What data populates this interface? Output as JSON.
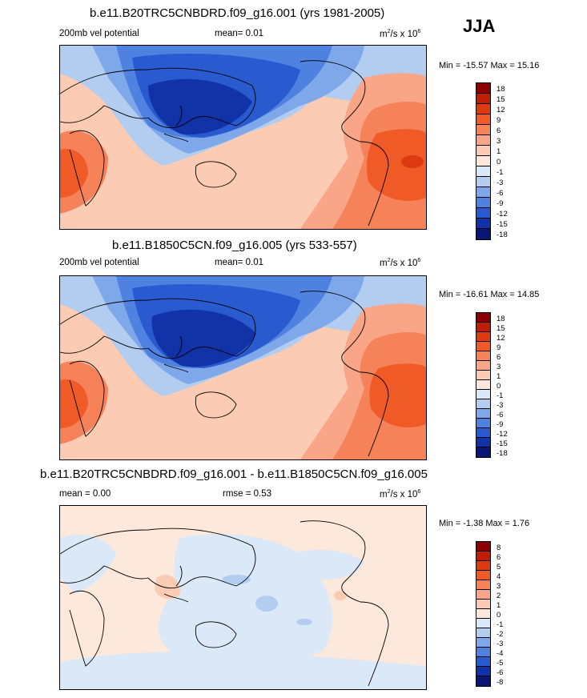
{
  "season": "JJA",
  "panels": [
    {
      "title": "b.e11.B20TRC5CNBDRD.f09_g16.001 (yrs 1981-2005)",
      "left_label": "200mb vel potential",
      "center_label": "mean=  0.01",
      "units_base": "m",
      "units_sup1": "2",
      "units_mid": "/s x 10",
      "units_sup2": "6",
      "minmax": "Min = -15.57 Max =  15.16",
      "levels": [
        "18",
        "15",
        "12",
        "9",
        "6",
        "3",
        "1",
        "0",
        "-1",
        "-3",
        "-6",
        "-9",
        "-12",
        "-15",
        "-18"
      ]
    },
    {
      "title": "b.e11.B1850C5CN.f09_g16.005 (yrs 533-557)",
      "left_label": "200mb vel potential",
      "center_label": "mean=  0.01",
      "units_base": "m",
      "units_sup1": "2",
      "units_mid": "/s x 10",
      "units_sup2": "6",
      "minmax": "Min = -16.61 Max =  14.85",
      "levels": [
        "18",
        "15",
        "12",
        "9",
        "6",
        "3",
        "1",
        "0",
        "-1",
        "-3",
        "-6",
        "-9",
        "-12",
        "-15",
        "-18"
      ]
    },
    {
      "title": "b.e11.B20TRC5CNBDRD.f09_g16.001 - b.e11.B1850C5CN.f09_g16.005",
      "left_label": "mean =  0.00",
      "center_label": "rmse =  0.53",
      "units_base": "m",
      "units_sup1": "2",
      "units_mid": "/s x 10",
      "units_sup2": "6",
      "minmax": "Min =  -1.38 Max =   1.76",
      "levels": [
        "8",
        "6",
        "5",
        "4",
        "3",
        "2",
        "1",
        "0",
        "-1",
        "-2",
        "-3",
        "-4",
        "-5",
        "-6",
        "-8"
      ]
    }
  ],
  "colors": {
    "scale": [
      "#8b0000",
      "#bf1d05",
      "#de3a12",
      "#ef5a26",
      "#f6825a",
      "#f9a688",
      "#fbcbb3",
      "#fde8dc",
      "#dbe8f8",
      "#b3cdf1",
      "#7fa8ea",
      "#4f82e0",
      "#2a5ad0",
      "#1232a8",
      "#0a1675"
    ],
    "diff_pos": "#fde8dc",
    "diff_neg": "#dbe8f8"
  }
}
